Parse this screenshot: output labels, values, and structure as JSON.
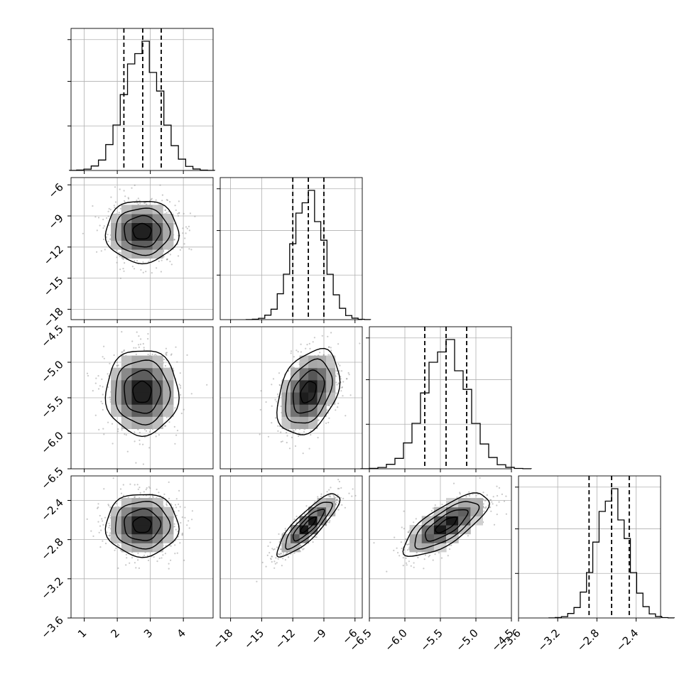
{
  "chart_data": {
    "type": "corner",
    "parameters": [
      {
        "index": 0,
        "range": [
          0.6,
          4.9
        ],
        "ticks": [
          1,
          2,
          3,
          4
        ],
        "tick_labels": [
          "1",
          "2",
          "3",
          "4"
        ],
        "mean": 2.75,
        "sigma": 0.55,
        "quantiles": [
          2.2,
          2.77,
          3.33
        ]
      },
      {
        "index": 1,
        "range": [
          -19.0,
          -5.3
        ],
        "ticks": [
          -18,
          -15,
          -12,
          -9,
          -6
        ],
        "tick_labels": [
          "−18",
          "−15",
          "−12",
          "−9",
          "−6"
        ],
        "mean": -10.5,
        "sigma": 1.5,
        "quantiles": [
          -12.0,
          -10.5,
          -9.0
        ]
      },
      {
        "index": 2,
        "range": [
          -6.5,
          -4.5
        ],
        "ticks": [
          -6.5,
          -6.0,
          -5.5,
          -5.0,
          -4.5
        ],
        "tick_labels": [
          "−6.5",
          "−6.0",
          "−5.5",
          "−5.0",
          "−4.5"
        ],
        "mean": -5.42,
        "sigma": 0.3,
        "quantiles": [
          -5.72,
          -5.42,
          -5.13
        ]
      },
      {
        "index": 3,
        "range": [
          -3.6,
          -2.15
        ],
        "ticks": [
          -3.6,
          -3.2,
          -2.8,
          -2.4
        ],
        "tick_labels": [
          "−3.6",
          "−3.2",
          "−2.8",
          "−2.4"
        ],
        "mean": -2.65,
        "sigma": 0.16,
        "quantiles": [
          -2.88,
          -2.65,
          -2.47
        ]
      }
    ],
    "correlations": [
      [
        1.0,
        0.0,
        0.0,
        0.0
      ],
      [
        0.0,
        1.0,
        0.35,
        0.85
      ],
      [
        0.0,
        0.35,
        1.0,
        0.75
      ],
      [
        0.0,
        0.85,
        0.75,
        1.0
      ]
    ],
    "contour_sigmas": [
      0.5,
      1.0,
      1.5,
      2.0
    ],
    "histogram_bins": 20,
    "scatter_points": 700,
    "grid": true,
    "colors": {
      "line": "#000000",
      "points": "#888888",
      "grid": "#b0b0b0"
    }
  }
}
